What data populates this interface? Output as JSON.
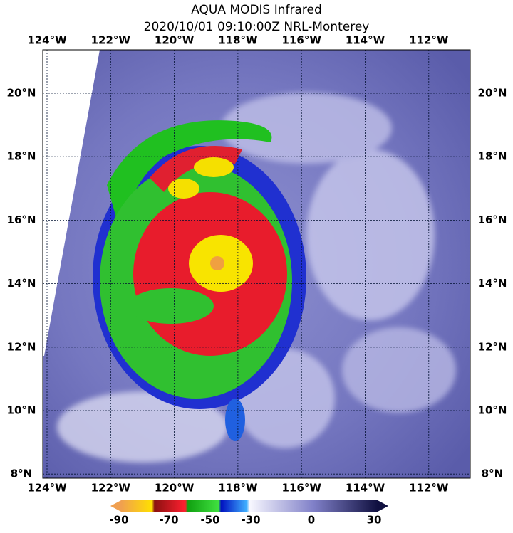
{
  "title": "AQUA MODIS Infrared",
  "subtitle": "2020/10/01 09:10:00Z NRL-Monterey",
  "longitudes": [
    "124°W",
    "122°W",
    "120°W",
    "118°W",
    "116°W",
    "114°W",
    "112°W"
  ],
  "latitudes": [
    "20°N",
    "18°N",
    "16°N",
    "14°N",
    "12°N",
    "10°N",
    "8°N"
  ],
  "colorbar": {
    "ticks": [
      -90,
      -70,
      -50,
      -30,
      0,
      30
    ]
  }
}
